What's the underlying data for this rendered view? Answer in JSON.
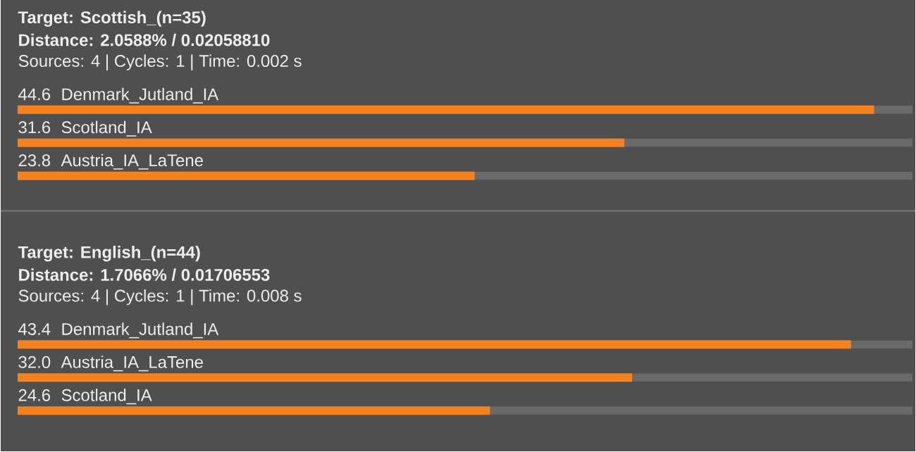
{
  "chart_data": [
    {
      "type": "bar",
      "orientation": "horizontal",
      "title": "Target: Scottish_(n=35)",
      "subtitle": "Distance: 2.0588% / 0.02058810",
      "annotations": [
        "Sources: 4 | Cycles: 1 | Time: 0.002 s"
      ],
      "categories": [
        "Denmark_Jutland_IA",
        "Scotland_IA",
        "Austria_IA_LaTene"
      ],
      "values": [
        44.6,
        31.6,
        23.8
      ],
      "value_labels": [
        "44.6",
        "31.6",
        "23.8"
      ],
      "color": "#f5821f",
      "xlim": [
        0,
        46.6
      ]
    },
    {
      "type": "bar",
      "orientation": "horizontal",
      "title": "Target: English_(n=44)",
      "subtitle": "Distance: 1.7066% / 0.01706553",
      "annotations": [
        "Sources: 4 | Cycles: 1 | Time: 0.008 s"
      ],
      "categories": [
        "Denmark_Jutland_IA",
        "Austria_IA_LaTene",
        "Scotland_IA"
      ],
      "values": [
        43.4,
        32.0,
        24.6
      ],
      "value_labels": [
        "43.4",
        "32.0",
        "24.6"
      ],
      "color": "#f5821f",
      "xlim": [
        0,
        46.6
      ]
    }
  ]
}
